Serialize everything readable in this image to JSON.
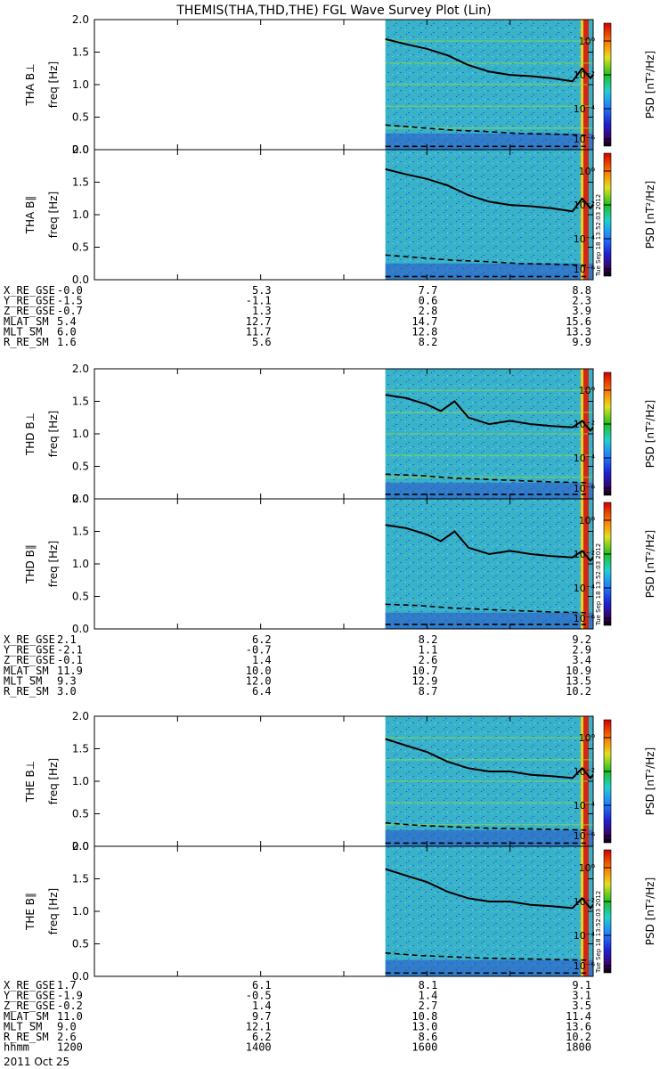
{
  "chart_data": {
    "type": "heatmap",
    "title": "THEMIS(THA,THD,THE) FGL Wave Survey Plot (Lin)",
    "x_range_hhmm": [
      1200,
      1800
    ],
    "date": "2011 Oct 25",
    "data_start_hhmm": 1530,
    "colorbar": {
      "label": "PSD [nT²/Hz]",
      "scale": "log",
      "range": [
        1e-07,
        10
      ],
      "tick_labels": [
        "10⁰",
        "10⁻²",
        "10⁻⁴",
        "10⁻⁶"
      ]
    },
    "y_axis": {
      "label": "freq [Hz]",
      "range": [
        0,
        2.0
      ],
      "tick_labels": [
        "0.0",
        "0.5",
        "1.0",
        "1.5",
        "2.0"
      ]
    },
    "timestamp_label": "Tue Sep 18 13:52:03 2012",
    "panels": [
      {
        "probe": "THA",
        "panel_label": "THA B⊥",
        "component": "perp",
        "gyro_curve_x_hhmm": [
          1530,
          1545,
          1600,
          1615,
          1630,
          1645,
          1700,
          1715,
          1730,
          1745,
          1752,
          1758,
          1800
        ],
        "gyro_curve_hz": [
          1.7,
          1.62,
          1.55,
          1.45,
          1.3,
          1.2,
          1.15,
          1.13,
          1.1,
          1.05,
          1.25,
          1.1,
          1.15
        ],
        "dashed_upper_hz": [
          0.38,
          0.34,
          0.3,
          0.28,
          0.25,
          0.24,
          0.22
        ],
        "dashed_lower_hz": [
          0.05,
          0.05,
          0.05,
          0.05,
          0.05,
          0.05,
          0.05
        ]
      },
      {
        "probe": "THA",
        "panel_label": "THA B∥",
        "component": "para",
        "gyro_curve_x_hhmm": [
          1530,
          1545,
          1600,
          1615,
          1630,
          1645,
          1700,
          1715,
          1730,
          1745,
          1752,
          1758,
          1800
        ],
        "gyro_curve_hz": [
          1.7,
          1.62,
          1.55,
          1.45,
          1.3,
          1.2,
          1.15,
          1.13,
          1.1,
          1.05,
          1.25,
          1.1,
          1.15
        ],
        "dashed_upper_hz": [
          0.38,
          0.34,
          0.3,
          0.28,
          0.25,
          0.24,
          0.22
        ],
        "dashed_lower_hz": [
          0.05,
          0.05,
          0.05,
          0.05,
          0.05,
          0.05,
          0.05
        ]
      },
      {
        "probe": "THD",
        "panel_label": "THD B⊥",
        "component": "perp",
        "gyro_curve_x_hhmm": [
          1530,
          1545,
          1600,
          1610,
          1620,
          1630,
          1645,
          1700,
          1715,
          1730,
          1745,
          1752,
          1758,
          1800
        ],
        "gyro_curve_hz": [
          1.6,
          1.55,
          1.45,
          1.35,
          1.5,
          1.25,
          1.15,
          1.2,
          1.15,
          1.12,
          1.1,
          1.2,
          1.05,
          1.1
        ],
        "dashed_upper_hz": [
          0.38,
          0.36,
          0.32,
          0.3,
          0.28,
          0.26,
          0.25
        ],
        "dashed_lower_hz": [
          0.07,
          0.07,
          0.07,
          0.07,
          0.07,
          0.07,
          0.07
        ]
      },
      {
        "probe": "THD",
        "panel_label": "THD B∥",
        "component": "para",
        "gyro_curve_x_hhmm": [
          1530,
          1545,
          1600,
          1610,
          1620,
          1630,
          1645,
          1700,
          1715,
          1730,
          1745,
          1752,
          1758,
          1800
        ],
        "gyro_curve_hz": [
          1.6,
          1.55,
          1.45,
          1.35,
          1.5,
          1.25,
          1.15,
          1.2,
          1.15,
          1.12,
          1.1,
          1.2,
          1.05,
          1.1
        ],
        "dashed_upper_hz": [
          0.38,
          0.36,
          0.32,
          0.3,
          0.28,
          0.26,
          0.25
        ],
        "dashed_lower_hz": [
          0.07,
          0.07,
          0.07,
          0.07,
          0.07,
          0.07,
          0.07
        ]
      },
      {
        "probe": "THE",
        "panel_label": "THE B⊥",
        "component": "perp",
        "gyro_curve_x_hhmm": [
          1530,
          1545,
          1600,
          1615,
          1630,
          1645,
          1700,
          1715,
          1730,
          1745,
          1752,
          1758,
          1800
        ],
        "gyro_curve_hz": [
          1.65,
          1.55,
          1.45,
          1.3,
          1.2,
          1.15,
          1.15,
          1.1,
          1.08,
          1.05,
          1.2,
          1.05,
          1.1
        ],
        "dashed_upper_hz": [
          0.36,
          0.32,
          0.3,
          0.28,
          0.27,
          0.26,
          0.25
        ],
        "dashed_lower_hz": [
          0.05,
          0.05,
          0.05,
          0.05,
          0.05,
          0.05,
          0.05
        ]
      },
      {
        "probe": "THE",
        "panel_label": "THE B∥",
        "component": "para",
        "gyro_curve_x_hhmm": [
          1530,
          1545,
          1600,
          1615,
          1630,
          1645,
          1700,
          1715,
          1730,
          1745,
          1752,
          1758,
          1800
        ],
        "gyro_curve_hz": [
          1.65,
          1.55,
          1.45,
          1.3,
          1.2,
          1.15,
          1.15,
          1.1,
          1.08,
          1.05,
          1.2,
          1.05,
          1.1
        ],
        "dashed_upper_hz": [
          0.36,
          0.32,
          0.3,
          0.28,
          0.27,
          0.26,
          0.25
        ],
        "dashed_lower_hz": [
          0.05,
          0.05,
          0.05,
          0.05,
          0.05,
          0.05,
          0.05
        ]
      }
    ],
    "ephemeris": [
      {
        "probe": "THA",
        "rows": [
          {
            "name": "X_RE_GSE",
            "values": [
              "-0.0",
              "5.3",
              "7.7",
              "8.8"
            ]
          },
          {
            "name": "Y_RE_GSE",
            "values": [
              "-1.5",
              "-1.1",
              "0.6",
              "2.3"
            ]
          },
          {
            "name": "Z_RE_GSE",
            "values": [
              "-0.7",
              "1.3",
              "2.8",
              "3.9"
            ]
          },
          {
            "name": "MLAT_SM",
            "values": [
              "5.4",
              "12.7",
              "14.7",
              "15.6"
            ]
          },
          {
            "name": "MLT_SM",
            "values": [
              "6.0",
              "11.7",
              "12.8",
              "13.3"
            ]
          },
          {
            "name": "R_RE_SM",
            "values": [
              "1.6",
              "5.6",
              "8.2",
              "9.9"
            ]
          }
        ]
      },
      {
        "probe": "THD",
        "rows": [
          {
            "name": "X_RE_GSE",
            "values": [
              "2.1",
              "6.2",
              "8.2",
              "9.2"
            ]
          },
          {
            "name": "Y_RE_GSE",
            "values": [
              "-2.1",
              "-0.7",
              "1.1",
              "2.9"
            ]
          },
          {
            "name": "Z_RE_GSE",
            "values": [
              "-0.1",
              "1.4",
              "2.6",
              "3.4"
            ]
          },
          {
            "name": "MLAT_SM",
            "values": [
              "11.9",
              "10.0",
              "10.7",
              "10.9"
            ]
          },
          {
            "name": "MLT_SM",
            "values": [
              "9.3",
              "12.0",
              "12.9",
              "13.5"
            ]
          },
          {
            "name": "R_RE_SM",
            "values": [
              "3.0",
              "6.4",
              "8.7",
              "10.2"
            ]
          }
        ]
      },
      {
        "probe": "THE",
        "rows": [
          {
            "name": "X_RE_GSE",
            "values": [
              "1.7",
              "6.1",
              "8.1",
              "9.1"
            ]
          },
          {
            "name": "Y_RE_GSE",
            "values": [
              "-1.9",
              "-0.5",
              "1.4",
              "3.1"
            ]
          },
          {
            "name": "Z_RE_GSE",
            "values": [
              "-0.2",
              "1.4",
              "2.7",
              "3.5"
            ]
          },
          {
            "name": "MLAT_SM",
            "values": [
              "11.0",
              "9.7",
              "10.8",
              "11.4"
            ]
          },
          {
            "name": "MLT_SM",
            "values": [
              "9.0",
              "12.1",
              "13.0",
              "13.6"
            ]
          },
          {
            "name": "R_RE_SM",
            "values": [
              "2.6",
              "6.2",
              "8.6",
              "10.2"
            ]
          },
          {
            "name": "hhmm",
            "values": [
              "1200",
              "1400",
              "1600",
              "1800"
            ]
          }
        ]
      }
    ]
  }
}
